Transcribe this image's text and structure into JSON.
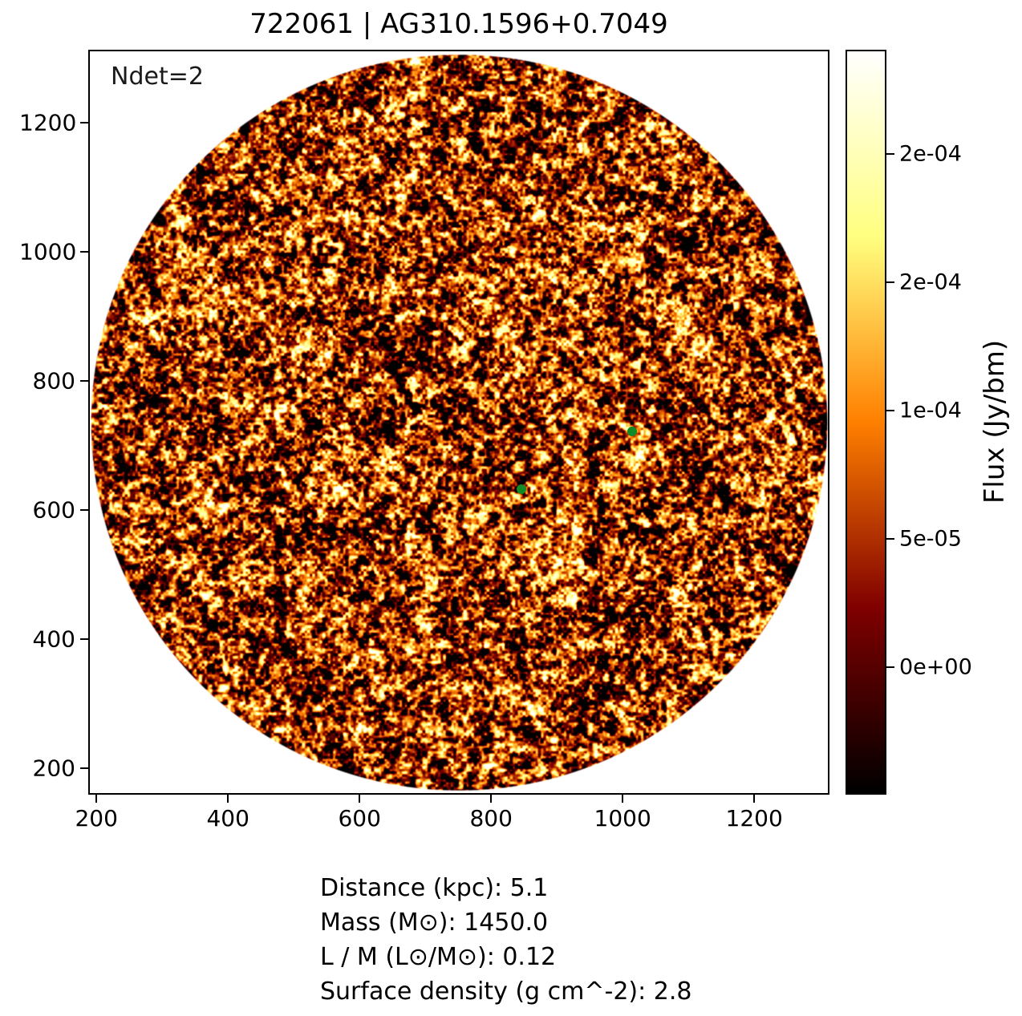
{
  "title": "722061 | AG310.1596+0.7049",
  "annotation": "Ndet=2",
  "footer": {
    "lines": [
      "Distance (kpc): 5.1",
      "Mass (M⊙): 1450.0",
      "L / M (L⊙/M⊙): 0.12",
      "Surface density (g cm^-2): 2.8"
    ]
  },
  "chart_data": {
    "type": "heatmap",
    "title": "722061 | AG310.1596+0.7049",
    "annotation": "Ndet=2",
    "image_description": "circular cutout of instrumental flux noise (afmhot colormap: black-red-orange-yellow-white granular speckle), white outside the circle",
    "colormap": "afmhot",
    "grid": false,
    "x_range": [
      190,
      1312
    ],
    "y_range": [
      161,
      1311
    ],
    "x_ticks": [
      200,
      400,
      600,
      800,
      1000,
      1200
    ],
    "y_ticks": [
      200,
      400,
      600,
      800,
      1000,
      1200
    ],
    "colorbar": {
      "label": "Flux (Jy/bm)",
      "range": [
        -4.9e-05,
        0.00024
      ],
      "ticks": [
        {
          "value": 0.0,
          "label": "0e+00"
        },
        {
          "value": 5e-05,
          "label": "5e-05"
        },
        {
          "value": 0.0001,
          "label": "1e-04"
        },
        {
          "value": 0.00015,
          "label": "2e-04"
        },
        {
          "value": 0.0002,
          "label": "2e-04"
        }
      ]
    },
    "detections": {
      "count": 2,
      "marker_color": "#128a26",
      "points": [
        {
          "x": 846,
          "y": 632
        },
        {
          "x": 1015,
          "y": 722
        }
      ]
    },
    "stats": {
      "distance_kpc": 5.1,
      "mass_msun": 1450.0,
      "l_over_m_lsun_per_msun": 0.12,
      "surface_density_g_cm2": 2.8
    }
  }
}
